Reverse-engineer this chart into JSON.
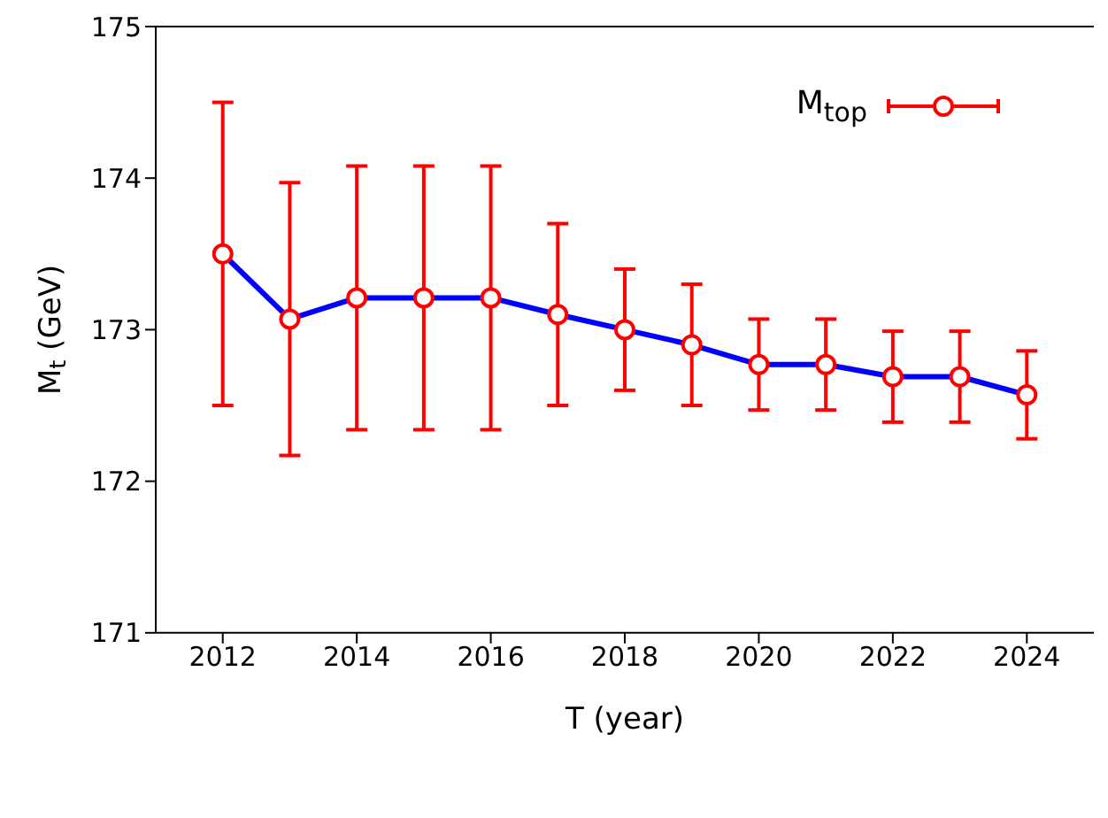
{
  "chart_data": {
    "type": "line",
    "xlabel": "T (year)",
    "ylabel": "M$_{t}$ (GeV)",
    "x": [
      2012,
      2013,
      2014,
      2015,
      2016,
      2017,
      2018,
      2019,
      2020,
      2021,
      2022,
      2023,
      2024
    ],
    "series": [
      {
        "name": "M$_{top}$",
        "color": "#0000ff",
        "colors": [
          "#ff0000",
          "#ff0000",
          "#ff0000",
          "#ff0000",
          "#ff0000",
          "#ff0000",
          "#ff0000",
          "#ff0000",
          "#ff0000",
          "#ff0000",
          "#ff0000",
          "#ff0000",
          "#ff0000"
        ],
        "values": [
          173.5,
          173.07,
          173.21,
          173.21,
          173.21,
          173.1,
          173.0,
          172.9,
          172.77,
          172.77,
          172.69,
          172.69,
          172.57
        ],
        "errors": [
          1.0,
          0.9,
          0.87,
          0.87,
          0.87,
          0.6,
          0.4,
          0.4,
          0.3,
          0.3,
          0.3,
          0.3,
          0.29
        ]
      }
    ],
    "xlim": [
      2011,
      2025
    ],
    "xticks": [
      2012,
      2014,
      2016,
      2018,
      2020,
      2022,
      2024
    ],
    "ylim": [
      171,
      175
    ],
    "yticks": [
      171,
      172,
      173,
      174,
      175
    ],
    "grid": false,
    "legend": "top right",
    "marker": "circle",
    "line_style": "solid"
  }
}
